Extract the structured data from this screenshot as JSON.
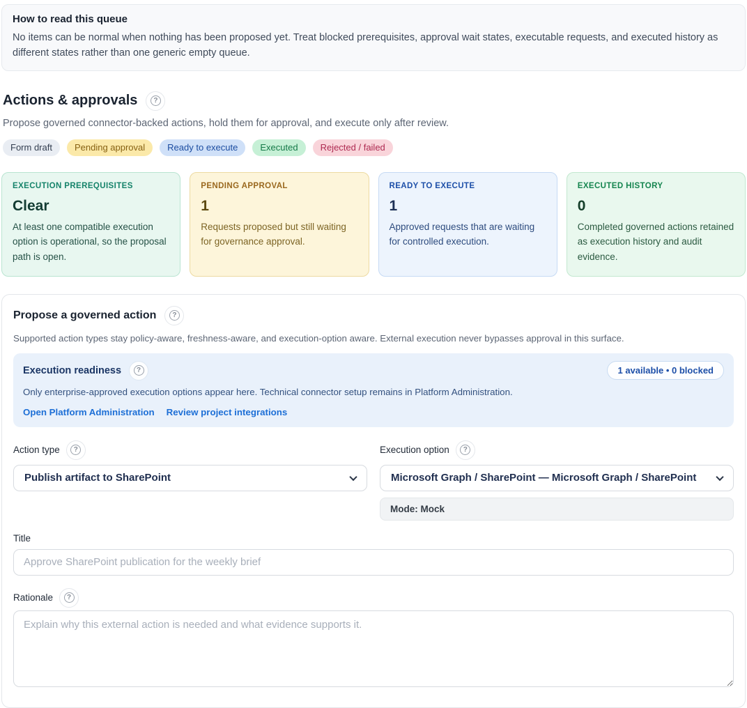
{
  "icons": {
    "help": "?"
  },
  "info_banner": {
    "title": "How to read this queue",
    "body": "No items can be normal when nothing has been proposed yet. Treat blocked prerequisites, approval wait states, executable requests, and executed history as different states rather than one generic empty queue."
  },
  "header": {
    "title": "Actions & approvals",
    "subtitle": "Propose governed connector-backed actions, hold them for approval, and execute only after review."
  },
  "legend_badges": [
    {
      "label": "Form draft",
      "bg": "#e9edf3",
      "fg": "#333e50"
    },
    {
      "label": "Pending approval",
      "bg": "#fbe9a9",
      "fg": "#876112"
    },
    {
      "label": "Ready to execute",
      "bg": "#cfe0f8",
      "fg": "#1c4da1"
    },
    {
      "label": "Executed",
      "bg": "#c6f0d6",
      "fg": "#157a48"
    },
    {
      "label": "Rejected / failed",
      "bg": "#f9d4da",
      "fg": "#ae2a51"
    }
  ],
  "stat_cards": [
    {
      "label": "EXECUTION PREREQUISITES",
      "value": "Clear",
      "description": "At least one compatible execution option is operational, so the proposal path is open.",
      "bg": "#e8f7f0",
      "border": "#b9e4d1",
      "label_color": "#15836a",
      "value_color": "#133c33",
      "text_color": "#265247"
    },
    {
      "label": "PENDING APPROVAL",
      "value": "1",
      "description": "Requests proposed but still waiting for governance approval.",
      "bg": "#fdf5da",
      "border": "#eddaa2",
      "label_color": "#9a681e",
      "value_color": "#5d4a10",
      "text_color": "#7c6424"
    },
    {
      "label": "READY TO EXECUTE",
      "value": "1",
      "description": "Approved requests that are waiting for controlled execution.",
      "bg": "#edf4fd",
      "border": "#c6daf4",
      "label_color": "#1d4fa8",
      "value_color": "#1c2f55",
      "text_color": "#2d4b7e"
    },
    {
      "label": "EXECUTED HISTORY",
      "value": "0",
      "description": "Completed governed actions retained as execution history and audit evidence.",
      "bg": "#e9f8ee",
      "border": "#c2e8cf",
      "label_color": "#15854f",
      "value_color": "#153f2a",
      "text_color": "#2b5a41"
    }
  ],
  "propose_section": {
    "title": "Propose a governed action",
    "subtitle": "Supported action types stay policy-aware, freshness-aware, and execution-option aware. External execution never bypasses approval in this surface.",
    "readiness": {
      "title": "Execution readiness",
      "badge": "1 available • 0 blocked",
      "body": "Only enterprise-approved execution options appear here. Technical connector setup remains in Platform Administration.",
      "links": [
        {
          "label": "Open Platform Administration"
        },
        {
          "label": "Review project integrations"
        }
      ]
    },
    "form": {
      "action_type": {
        "label": "Action type",
        "value": "Publish artifact to SharePoint"
      },
      "execution_option": {
        "label": "Execution option",
        "value": "Microsoft Graph / SharePoint — Microsoft Graph / SharePoint",
        "mode": "Mode: Mock"
      },
      "title_field": {
        "label": "Title",
        "placeholder": "Approve SharePoint publication for the weekly brief"
      },
      "rationale_field": {
        "label": "Rationale",
        "placeholder": "Explain why this external action is needed and what evidence supports it."
      }
    }
  }
}
